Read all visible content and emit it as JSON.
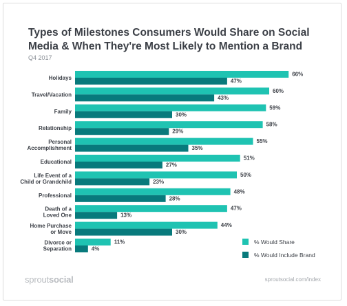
{
  "chart_data": {
    "type": "bar",
    "orientation": "horizontal",
    "title": "Types of Milestones Consumers Would Share on Social Media & When They're Most Likely to Mention a Brand",
    "subtitle": "Q4 2017",
    "categories": [
      [
        "Holidays"
      ],
      [
        "Travel/Vacation"
      ],
      [
        "Family"
      ],
      [
        "Relationship"
      ],
      [
        "Personal",
        "Accomplishment"
      ],
      [
        "Educational"
      ],
      [
        "Life Event of a",
        "Child or Grandchild"
      ],
      [
        "Professional"
      ],
      [
        "Death of a",
        "Loved One"
      ],
      [
        "Home Purchase",
        "or Move"
      ],
      [
        "Divorce or",
        "Separation"
      ]
    ],
    "series": [
      {
        "name": "% Would Share",
        "color": "#1fc3b2",
        "values": [
          66,
          60,
          59,
          58,
          55,
          51,
          50,
          48,
          47,
          44,
          11
        ]
      },
      {
        "name": "% Would Include Brand",
        "color": "#087a7c",
        "values": [
          47,
          43,
          30,
          29,
          35,
          27,
          23,
          28,
          13,
          30,
          4
        ]
      }
    ],
    "value_suffix": "%",
    "xlim": [
      0,
      70
    ],
    "grid": false,
    "legend_position": "bottom-right"
  },
  "footer": {
    "brand_light": "sprout",
    "brand_bold": "social",
    "url": "sproutsocial.com/index"
  }
}
